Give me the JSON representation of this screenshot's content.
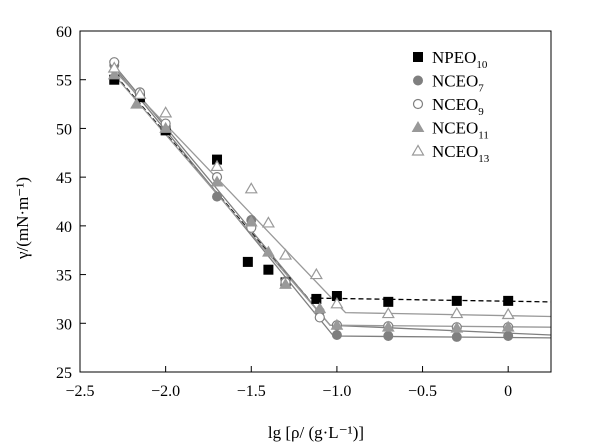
{
  "chart_data": {
    "type": "scatter",
    "title": "",
    "xlabel": "lg [ρ/ (g·L⁻¹)]",
    "ylabel": "γ/(mN·m⁻¹)",
    "xlim": [
      -2.5,
      0.25
    ],
    "ylim": [
      25,
      60
    ],
    "xticks": [
      -2.5,
      -2.0,
      -1.5,
      -1.0,
      -0.5,
      0
    ],
    "xtick_labels": [
      "−2.5",
      "−2.0",
      "−1.5",
      "−1.0",
      "−0.5",
      "0"
    ],
    "yticks": [
      25,
      30,
      35,
      40,
      45,
      50,
      55,
      60
    ],
    "ytick_labels": [
      "25",
      "30",
      "35",
      "40",
      "45",
      "50",
      "55",
      "60"
    ],
    "grid": false,
    "legend_position": "top-right",
    "series": [
      {
        "name": "NPEO",
        "name_sub": "10",
        "marker": "square-filled",
        "color": "#000000",
        "line_style": "dashed",
        "x": [
          -2.3,
          -2.15,
          -2.0,
          -1.7,
          -1.52,
          -1.4,
          -1.3,
          -1.12,
          -1.0,
          -0.7,
          -0.3,
          0.0
        ],
        "y": [
          55.0,
          53.2,
          49.8,
          46.8,
          36.3,
          35.5,
          34.2,
          32.5,
          32.8,
          32.2,
          32.3,
          32.3
        ],
        "fit": [
          [
            -2.32,
            56.0
          ],
          [
            -1.17,
            32.6
          ],
          [
            0.25,
            32.2
          ]
        ]
      },
      {
        "name": "NCEO",
        "name_sub": "7",
        "marker": "circle-filled",
        "color": "#7f7f7f",
        "line_style": "solid",
        "x": [
          -2.3,
          -2.15,
          -2.0,
          -1.7,
          -1.5,
          -1.3,
          -1.1,
          -1.0,
          -0.7,
          -0.3,
          0.0
        ],
        "y": [
          56.5,
          53.6,
          50.2,
          43.0,
          40.6,
          34.3,
          31.2,
          28.8,
          28.7,
          28.6,
          28.7
        ],
        "fit": [
          [
            -2.32,
            56.7
          ],
          [
            -1.02,
            28.7
          ],
          [
            0.25,
            28.5
          ]
        ]
      },
      {
        "name": "NCEO",
        "name_sub": "9",
        "marker": "circle-open",
        "color": "#7f7f7f",
        "line_style": "solid",
        "x": [
          -2.3,
          -2.15,
          -2.0,
          -1.7,
          -1.5,
          -1.3,
          -1.1,
          -1.0,
          -0.7,
          -0.3,
          0.0
        ],
        "y": [
          56.8,
          53.7,
          50.5,
          45.0,
          39.8,
          34.2,
          30.6,
          29.8,
          29.7,
          29.6,
          29.6
        ],
        "fit": [
          [
            -2.32,
            56.9
          ],
          [
            -1.04,
            29.8
          ],
          [
            0.25,
            28.8
          ]
        ]
      },
      {
        "name": "NCEO",
        "name_sub": "11",
        "marker": "triangle-filled",
        "color": "#999999",
        "line_style": "solid",
        "x": [
          -2.3,
          -2.17,
          -2.0,
          -1.7,
          -1.5,
          -1.4,
          -1.3,
          -1.1,
          -1.0,
          -0.7,
          -0.3,
          0.0
        ],
        "y": [
          55.5,
          52.5,
          50.0,
          44.5,
          40.4,
          37.3,
          34.0,
          31.5,
          29.8,
          29.6,
          29.5,
          29.6
        ],
        "fit": [
          [
            -2.32,
            55.9
          ],
          [
            -1.04,
            29.8
          ],
          [
            0.25,
            29.6
          ]
        ]
      },
      {
        "name": "NCEO",
        "name_sub": "13",
        "marker": "triangle-open",
        "color": "#999999",
        "line_style": "solid",
        "x": [
          -2.3,
          -2.15,
          -2.0,
          -1.7,
          -1.5,
          -1.4,
          -1.3,
          -1.12,
          -1.0,
          -0.7,
          -0.3,
          0.0
        ],
        "y": [
          56.2,
          53.5,
          51.6,
          46.1,
          43.8,
          40.3,
          37.0,
          35.0,
          32.0,
          31.0,
          31.0,
          30.9
        ],
        "fit": [
          [
            -2.32,
            56.3
          ],
          [
            -0.95,
            31.1
          ],
          [
            0.25,
            30.7
          ]
        ]
      }
    ]
  }
}
